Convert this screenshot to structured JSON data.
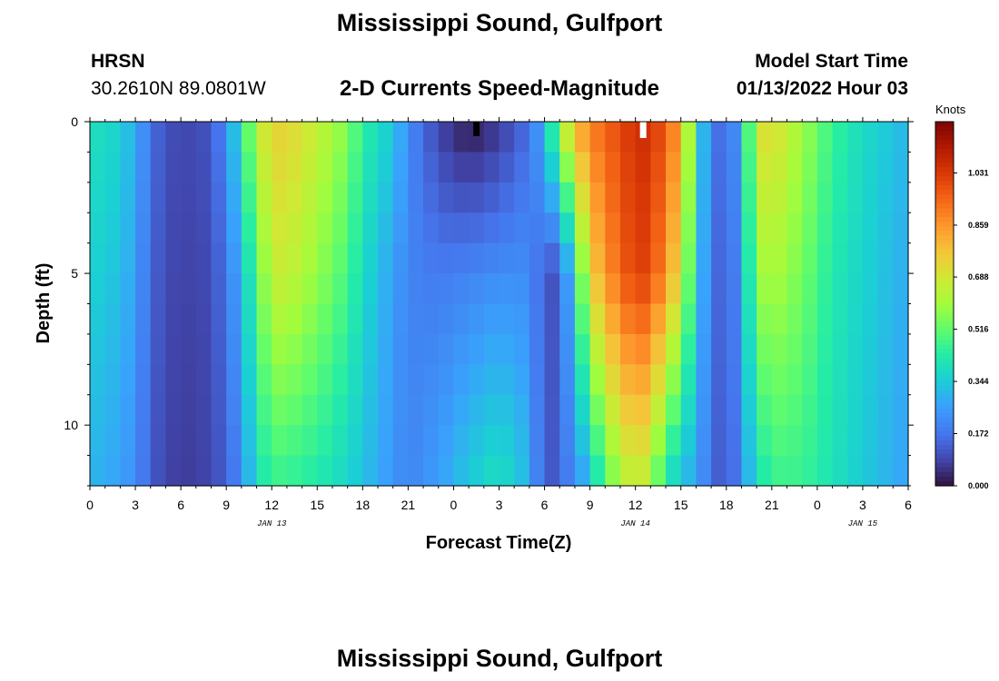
{
  "header": {
    "title": "Mississippi Sound, Gulfport",
    "station": "HRSN",
    "coords": "30.2610N  89.0801W",
    "subtitle": "2-D Currents Speed-Magnitude",
    "model_start_label": "Model Start Time",
    "model_start_value": "01/13/2022 Hour 03"
  },
  "footer": {
    "title": "Mississippi Sound, Gulfport"
  },
  "chart_data": {
    "type": "heatmap",
    "title": "2-D Currents Speed-Magnitude",
    "xlabel": "Forecast Time(Z)",
    "ylabel": "Depth (ft)",
    "x_range_hours": [
      0,
      54
    ],
    "y_range_ft": [
      0,
      12
    ],
    "x_tick_values": [
      0,
      3,
      6,
      9,
      12,
      15,
      18,
      21,
      24,
      27,
      30,
      33,
      36,
      39,
      42,
      45,
      48,
      51,
      54
    ],
    "x_tick_labels": [
      "0",
      "3",
      "6",
      "9",
      "12",
      "15",
      "18",
      "21",
      "0",
      "3",
      "6",
      "9",
      "12",
      "15",
      "18",
      "21",
      "0",
      "3",
      "6"
    ],
    "y_tick_values": [
      0,
      5,
      10
    ],
    "y_tick_labels": [
      "0",
      "5",
      "10"
    ],
    "date_labels": [
      {
        "hour": 12,
        "text": "JAN 13"
      },
      {
        "hour": 36,
        "text": "JAN 14"
      },
      {
        "hour": 51,
        "text": "JAN 15"
      }
    ],
    "colorbar": {
      "unit": "Knots",
      "min": 0.0,
      "max": 1.2,
      "tick_labels": [
        "0.000",
        "0.172",
        "0.344",
        "0.516",
        "0.688",
        "0.859",
        "1.031"
      ],
      "tick_values": [
        0.0,
        0.172,
        0.344,
        0.516,
        0.688,
        0.859,
        1.031
      ]
    },
    "grid": false,
    "profile_note": "speed (knots) by forecast hour: column 'surface' = 0 ft, 'mid' = 5 ft, 'bottom' = 12 ft",
    "speed_profile": [
      {
        "h": 0,
        "surface": 0.4,
        "mid": 0.36,
        "bottom": 0.3
      },
      {
        "h": 2,
        "surface": 0.36,
        "mid": 0.32,
        "bottom": 0.26
      },
      {
        "h": 3,
        "surface": 0.28,
        "mid": 0.26,
        "bottom": 0.22
      },
      {
        "h": 4,
        "surface": 0.17,
        "mid": 0.15,
        "bottom": 0.13
      },
      {
        "h": 5,
        "surface": 0.1,
        "mid": 0.09,
        "bottom": 0.08
      },
      {
        "h": 7,
        "surface": 0.09,
        "mid": 0.08,
        "bottom": 0.07
      },
      {
        "h": 8,
        "surface": 0.12,
        "mid": 0.1,
        "bottom": 0.09
      },
      {
        "h": 9,
        "surface": 0.22,
        "mid": 0.17,
        "bottom": 0.13
      },
      {
        "h": 10,
        "surface": 0.42,
        "mid": 0.3,
        "bottom": 0.22
      },
      {
        "h": 11,
        "surface": 0.64,
        "mid": 0.5,
        "bottom": 0.38
      },
      {
        "h": 12,
        "surface": 0.74,
        "mid": 0.66,
        "bottom": 0.46
      },
      {
        "h": 13,
        "surface": 0.74,
        "mid": 0.66,
        "bottom": 0.45
      },
      {
        "h": 15,
        "surface": 0.66,
        "mid": 0.58,
        "bottom": 0.42
      },
      {
        "h": 17,
        "surface": 0.56,
        "mid": 0.48,
        "bottom": 0.36
      },
      {
        "h": 18,
        "surface": 0.44,
        "mid": 0.38,
        "bottom": 0.32
      },
      {
        "h": 20,
        "surface": 0.34,
        "mid": 0.26,
        "bottom": 0.24
      },
      {
        "h": 21,
        "surface": 0.22,
        "mid": 0.2,
        "bottom": 0.2
      },
      {
        "h": 23,
        "surface": 0.08,
        "mid": 0.18,
        "bottom": 0.26
      },
      {
        "h": 25,
        "surface": 0.01,
        "mid": 0.2,
        "bottom": 0.34
      },
      {
        "h": 27,
        "surface": 0.06,
        "mid": 0.22,
        "bottom": 0.4
      },
      {
        "h": 29,
        "surface": 0.16,
        "mid": 0.22,
        "bottom": 0.3
      },
      {
        "h": 30,
        "surface": 0.3,
        "mid": 0.12,
        "bottom": 0.1
      },
      {
        "h": 31,
        "surface": 0.6,
        "mid": 0.1,
        "bottom": 0.14
      },
      {
        "h": 32,
        "surface": 0.8,
        "mid": 0.4,
        "bottom": 0.22
      },
      {
        "h": 33,
        "surface": 0.9,
        "mid": 0.72,
        "bottom": 0.3
      },
      {
        "h": 34,
        "surface": 0.95,
        "mid": 0.86,
        "bottom": 0.5
      },
      {
        "h": 36,
        "surface": 1.05,
        "mid": 1.02,
        "bottom": 0.68
      },
      {
        "h": 37,
        "surface": 1.06,
        "mid": 1.0,
        "bottom": 0.6
      },
      {
        "h": 38,
        "surface": 0.95,
        "mid": 0.86,
        "bottom": 0.4
      },
      {
        "h": 39,
        "surface": 0.85,
        "mid": 0.7,
        "bottom": 0.32
      },
      {
        "h": 40,
        "surface": 0.4,
        "mid": 0.36,
        "bottom": 0.26
      },
      {
        "h": 41,
        "surface": 0.2,
        "mid": 0.18,
        "bottom": 0.16
      },
      {
        "h": 42,
        "surface": 0.12,
        "mid": 0.11,
        "bottom": 0.1
      },
      {
        "h": 43,
        "surface": 0.3,
        "mid": 0.26,
        "bottom": 0.22
      },
      {
        "h": 44,
        "surface": 0.7,
        "mid": 0.58,
        "bottom": 0.38
      },
      {
        "h": 45,
        "surface": 0.72,
        "mid": 0.62,
        "bottom": 0.46
      },
      {
        "h": 47,
        "surface": 0.6,
        "mid": 0.54,
        "bottom": 0.46
      },
      {
        "h": 49,
        "surface": 0.46,
        "mid": 0.42,
        "bottom": 0.4
      },
      {
        "h": 51,
        "surface": 0.38,
        "mid": 0.36,
        "bottom": 0.34
      },
      {
        "h": 54,
        "surface": 0.3,
        "mid": 0.28,
        "bottom": 0.26
      }
    ]
  }
}
